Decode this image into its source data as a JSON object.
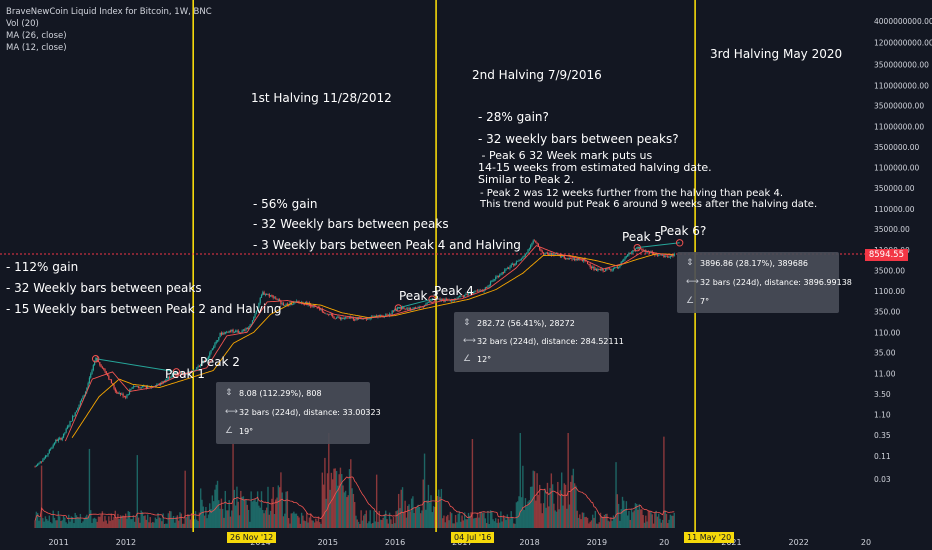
{
  "header": {
    "title": "BraveNewCoin Liquid Index for Bitcoin, 1W, BNC",
    "vol_label": "Vol (20)",
    "ma1_label": "MA (26, close)",
    "ma2_label": "MA (12, close)"
  },
  "colors": {
    "background": "#131722",
    "up": "#26a69a",
    "down": "#ef5350",
    "ma26": "#f7a600",
    "ma12": "#ef5350",
    "halving_line": "#f5d90a",
    "price_line": "#f23645",
    "box_bg": "#494d58"
  },
  "annotations": {
    "halving1": "1st Halving 11/28/2012",
    "halving2": "2nd Halving 7/9/2016",
    "halving3": "3rd Halving May 2020",
    "h1_a": "- 112% gain",
    "h1_b": "- 32 Weekly bars between peaks",
    "h1_c": "- 15 Weekly bars between Peak 2 and Halving",
    "h2_a": "- 56% gain",
    "h2_b": "- 32 Weekly bars between peaks",
    "h2_c": "- 3 Weekly bars between Peak 4 and Halving",
    "h3_a": "- 28% gain?",
    "h3_b": "- 32 weekly bars between peaks?",
    "h3_c": " - Peak 6 32 Week mark puts us\n14-15 weeks from estimated halving date.\nSimilar to Peak 2.",
    "h3_d": "- Peak 2 was 12 weeks further from the halving than peak 4.\nThis trend would put Peak 6 around 9 weeks after the halving date.",
    "peak1": "Peak 1",
    "peak2": "Peak 2",
    "peak3": "Peak 3",
    "peak4": "Peak 4",
    "peak5": "Peak 5",
    "peak6": "Peak 6?"
  },
  "measure_boxes": [
    {
      "line1": "8.08 (112.29%), 808",
      "line2": "32 bars (224d), distance: 33.00323",
      "line3": "19°"
    },
    {
      "line1": "282.72 (56.41%), 28272",
      "line2": "32 bars (224d), distance: 284.52111",
      "line3": "12°"
    },
    {
      "line1": "3896.86 (28.17%), 389686",
      "line2": "32 bars (224d), distance: 3896.99138",
      "line3": "7°"
    }
  ],
  "price_label": "8594.55",
  "date_tags": [
    "26 Nov '12",
    "04 Jul '16",
    "11 May '20"
  ],
  "chart_data": {
    "type": "candlestick",
    "title": "BraveNewCoin Liquid Index for Bitcoin, 1W, BNC",
    "x_axis": {
      "ticks": [
        "2011",
        "2012",
        "2014",
        "2015",
        "2016",
        "2017",
        "2018",
        "2019",
        "20",
        "2021",
        "2022",
        "20"
      ],
      "range": [
        2010.4,
        2022.9
      ]
    },
    "y_axis": {
      "scale": "log",
      "ticks": [
        "4000000000.00",
        "1200000000.00",
        "350000000.00",
        "110000000.00",
        "35000000.00",
        "11000000.00",
        "3500000.00",
        "1100000.00",
        "350000.00",
        "110000.00",
        "35000.00",
        "11000.00",
        "3500.00",
        "1100.00",
        "350.00",
        "110.00",
        "35.00",
        "11.00",
        "3.50",
        "1.10",
        "0.35",
        "0.11",
        "0.03"
      ]
    },
    "price_series": {
      "name": "BTC",
      "points": [
        [
          2010.55,
          0.06
        ],
        [
          2010.7,
          0.1
        ],
        [
          2010.85,
          0.25
        ],
        [
          2010.95,
          0.3
        ],
        [
          2011.1,
          0.9
        ],
        [
          2011.3,
          4
        ],
        [
          2011.45,
          25
        ],
        [
          2011.6,
          12
        ],
        [
          2011.75,
          4
        ],
        [
          2011.9,
          3
        ],
        [
          2012.0,
          5.5
        ],
        [
          2012.2,
          5
        ],
        [
          2012.4,
          6
        ],
        [
          2012.55,
          9
        ],
        [
          2012.65,
          12
        ],
        [
          2012.75,
          11
        ],
        [
          2012.9,
          12
        ],
        [
          2013.1,
          25
        ],
        [
          2013.3,
          100
        ],
        [
          2013.45,
          120
        ],
        [
          2013.6,
          110
        ],
        [
          2013.75,
          150
        ],
        [
          2013.93,
          1000
        ],
        [
          2014.1,
          800
        ],
        [
          2014.25,
          500
        ],
        [
          2014.45,
          600
        ],
        [
          2014.6,
          550
        ],
        [
          2014.8,
          380
        ],
        [
          2015.0,
          250
        ],
        [
          2015.2,
          240
        ],
        [
          2015.45,
          240
        ],
        [
          2015.6,
          260
        ],
        [
          2015.8,
          300
        ],
        [
          2015.95,
          430
        ],
        [
          2016.1,
          400
        ],
        [
          2016.3,
          450
        ],
        [
          2016.45,
          700
        ],
        [
          2016.6,
          650
        ],
        [
          2016.8,
          700
        ],
        [
          2017.0,
          1000
        ],
        [
          2017.2,
          1100
        ],
        [
          2017.4,
          2400
        ],
        [
          2017.6,
          4200
        ],
        [
          2017.8,
          7000
        ],
        [
          2017.96,
          19000
        ],
        [
          2018.1,
          9000
        ],
        [
          2018.3,
          8500
        ],
        [
          2018.5,
          6500
        ],
        [
          2018.7,
          6400
        ],
        [
          2018.88,
          3500
        ],
        [
          2019.0,
          3600
        ],
        [
          2019.2,
          4000
        ],
        [
          2019.35,
          8000
        ],
        [
          2019.5,
          12500
        ],
        [
          2019.65,
          10000
        ],
        [
          2019.8,
          8500
        ],
        [
          2019.95,
          7200
        ],
        [
          2020.05,
          8600
        ]
      ]
    },
    "ma26_series": {
      "name": "MA (26, close)",
      "points": [
        [
          2011.1,
          0.3
        ],
        [
          2011.5,
          3
        ],
        [
          2011.8,
          8
        ],
        [
          2012.0,
          6
        ],
        [
          2012.4,
          5
        ],
        [
          2012.8,
          8
        ],
        [
          2013.2,
          13
        ],
        [
          2013.5,
          60
        ],
        [
          2013.8,
          110
        ],
        [
          2014.05,
          300
        ],
        [
          2014.4,
          600
        ],
        [
          2014.8,
          500
        ],
        [
          2015.1,
          330
        ],
        [
          2015.5,
          250
        ],
        [
          2015.9,
          280
        ],
        [
          2016.3,
          400
        ],
        [
          2016.7,
          550
        ],
        [
          2017.0,
          700
        ],
        [
          2017.4,
          1200
        ],
        [
          2017.8,
          3000
        ],
        [
          2018.1,
          8000
        ],
        [
          2018.5,
          8000
        ],
        [
          2018.9,
          6000
        ],
        [
          2019.2,
          4500
        ],
        [
          2019.5,
          6500
        ],
        [
          2019.8,
          9000
        ],
        [
          2020.05,
          8500
        ]
      ]
    },
    "ma12_series": {
      "name": "MA (12, close)",
      "points": [
        [
          2011.0,
          0.25
        ],
        [
          2011.4,
          8
        ],
        [
          2011.7,
          12
        ],
        [
          2011.95,
          4
        ],
        [
          2012.3,
          5
        ],
        [
          2012.7,
          10
        ],
        [
          2013.1,
          15
        ],
        [
          2013.4,
          90
        ],
        [
          2013.7,
          110
        ],
        [
          2014.0,
          600
        ],
        [
          2014.3,
          650
        ],
        [
          2014.7,
          480
        ],
        [
          2015.0,
          300
        ],
        [
          2015.4,
          235
        ],
        [
          2015.8,
          270
        ],
        [
          2016.2,
          410
        ],
        [
          2016.6,
          650
        ],
        [
          2016.9,
          720
        ],
        [
          2017.3,
          1300
        ],
        [
          2017.7,
          4000
        ],
        [
          2018.0,
          14000
        ],
        [
          2018.3,
          9000
        ],
        [
          2018.7,
          6500
        ],
        [
          2019.0,
          3800
        ],
        [
          2019.3,
          5200
        ],
        [
          2019.6,
          10500
        ],
        [
          2019.85,
          8800
        ],
        [
          2020.05,
          8100
        ]
      ]
    },
    "volume_series": {
      "name": "Vol (20)"
    },
    "halvings": [
      {
        "label": "1st Halving 11/28/2012",
        "date": "26 Nov '12",
        "x": 2012.9
      },
      {
        "label": "2nd Halving 7/9/2016",
        "date": "04 Jul '16",
        "x": 2016.51
      },
      {
        "label": "3rd Halving May 2020",
        "date": "11 May '20",
        "x": 2020.36
      }
    ],
    "peaks": [
      {
        "label": "Peak 1",
        "x": 2011.45,
        "y": 25
      },
      {
        "label": "Peak 2",
        "x": 2012.65,
        "y": 12
      },
      {
        "label": "Peak 3",
        "x": 2015.95,
        "y": 430
      },
      {
        "label": "Peak 4",
        "x": 2016.45,
        "y": 700
      },
      {
        "label": "Peak 5",
        "x": 2019.5,
        "y": 12500
      },
      {
        "label": "Peak 6?",
        "x": 2020.13,
        "y": 16400
      }
    ],
    "last_price": 8594.55,
    "grid": false
  }
}
